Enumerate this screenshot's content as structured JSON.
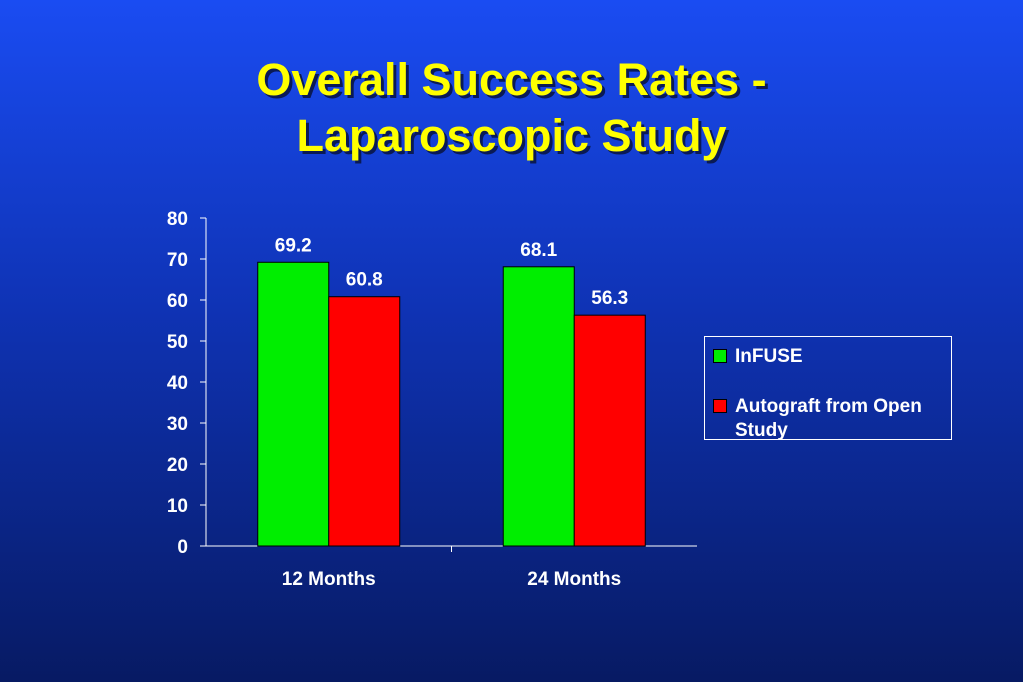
{
  "title_line1": "Overall Success Rates -",
  "title_line2": "Laparoscopic Study",
  "chart_data": {
    "type": "bar",
    "categories": [
      "12 Months",
      "24 Months"
    ],
    "series": [
      {
        "name": "InFUSE",
        "values": [
          69.2,
          68.1
        ],
        "labels": [
          "69.2",
          "68.1"
        ],
        "color": "#00ee00"
      },
      {
        "name": "Autograft from Open Study",
        "values": [
          60.8,
          56.3
        ],
        "labels": [
          "60.8",
          "56.3"
        ],
        "color": "#ff0000"
      }
    ],
    "ylim": [
      0,
      80
    ],
    "yticks": [
      "0",
      "10",
      "20",
      "30",
      "40",
      "50",
      "60",
      "70",
      "80"
    ],
    "legend_position": "right",
    "grid": false,
    "text_color": "#ffffff",
    "title_color": "#ffff00"
  }
}
